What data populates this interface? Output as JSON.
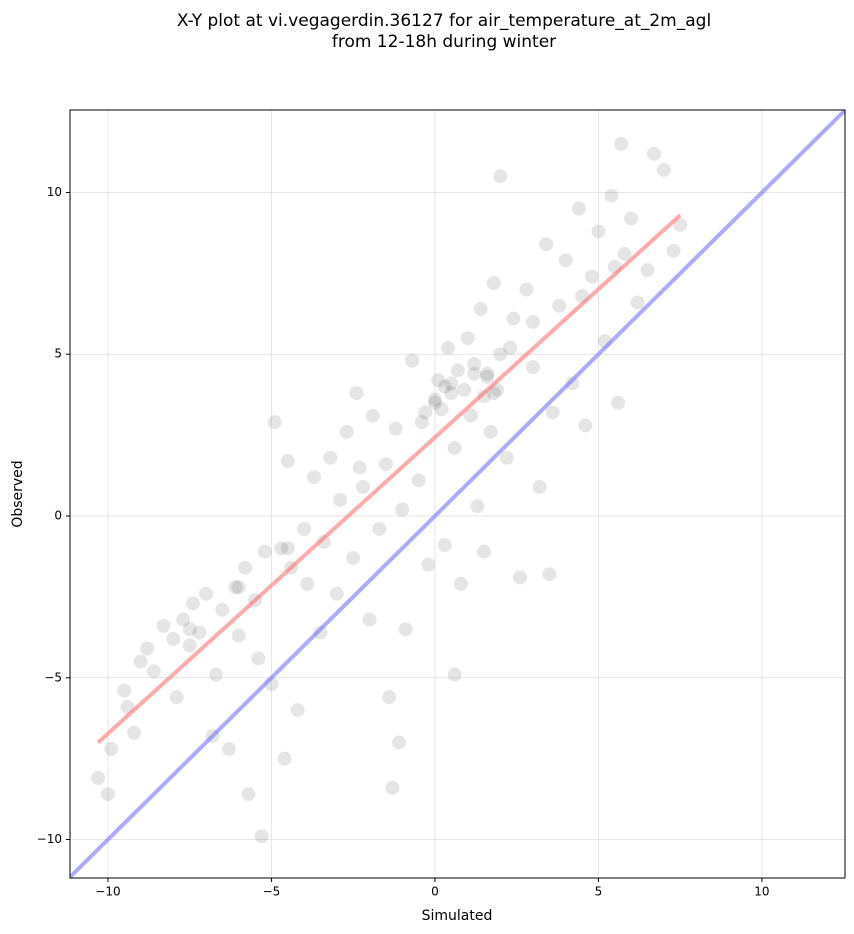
{
  "chart_data": {
    "type": "scatter",
    "title_lines": [
      "X-Y plot at vi.vegagerdin.36127 for air_temperature_at_2m_agl",
      "from 12-18h during winter"
    ],
    "xlabel": "Simulated",
    "ylabel": "Observed",
    "xlim": [
      -11.16,
      12.54
    ],
    "ylim": [
      -11.19,
      12.55
    ],
    "xticks": [
      {
        "value": -10,
        "label": "−10"
      },
      {
        "value": -5,
        "label": "−5"
      },
      0,
      5,
      10
    ],
    "yticks": [
      {
        "value": -10,
        "label": "−10"
      },
      {
        "value": -5,
        "label": "−5"
      },
      0,
      5,
      10
    ],
    "grid": true,
    "color": "#000000",
    "x": [
      -10.3,
      -10,
      -9.9,
      -9.5,
      -9.4,
      -9.2,
      -9,
      -8.8,
      -8.6,
      -8.3,
      -8,
      -7.9,
      -7.7,
      -7.5,
      -7.4,
      -7.2,
      -7,
      -6.8,
      -6.7,
      -6.5,
      -6.3,
      -6.1,
      -6,
      -5.8,
      -5.7,
      -5.5,
      -5.4,
      -5.3,
      -5.2,
      -5,
      -4.9,
      -4.7,
      -4.6,
      -4.5,
      -4.4,
      -4.2,
      -4,
      -3.9,
      -3.7,
      -3.5,
      -3.4,
      -3.2,
      -3,
      -2.9,
      -2.7,
      -2.5,
      -2.4,
      -2.2,
      -2,
      -1.9,
      -1.7,
      -1.5,
      -1.4,
      -1.2,
      -1,
      -0.9,
      -0.7,
      -0.5,
      -0.4,
      -0.2,
      0,
      0.1,
      0.2,
      0.3,
      0.4,
      0.5,
      0.6,
      0.7,
      0.8,
      0.9,
      1,
      1.1,
      1.2,
      1.3,
      1.4,
      1.5,
      1.6,
      1.7,
      1.8,
      1.9,
      2,
      2.2,
      2.4,
      2.6,
      2.8,
      3,
      3.2,
      3.4,
      3.6,
      3.8,
      4,
      4.2,
      4.4,
      4.6,
      4.8,
      5,
      5.2,
      5.4,
      5.6,
      5.8,
      6,
      6.2,
      6.5,
      7,
      7.3,
      7.5,
      2,
      1.5,
      3.5,
      -1.1,
      -1.3,
      0.6,
      6.7,
      5.7,
      0,
      0.3,
      1.6,
      1.8,
      0.5,
      1.2,
      -0.3,
      2.3,
      -2.3,
      -4.5,
      -6,
      -7.5,
      4.5,
      5.5,
      3
    ],
    "values": [
      -8.1,
      -8.6,
      -7.2,
      -5.4,
      -5.9,
      -6.7,
      -4.5,
      -4.1,
      -4.8,
      -3.4,
      -3.8,
      -5.6,
      -3.2,
      -4.0,
      -2.7,
      -3.6,
      -2.4,
      -6.8,
      -4.9,
      -2.9,
      -7.2,
      -2.2,
      -3.7,
      -1.6,
      -8.6,
      -2.6,
      -4.4,
      -9.9,
      -1.1,
      -5.2,
      2.9,
      -1.0,
      -7.5,
      1.7,
      -1.6,
      -6.0,
      -0.4,
      -2.1,
      1.2,
      -3.6,
      -0.8,
      1.8,
      -2.4,
      0.5,
      2.6,
      -1.3,
      3.8,
      0.9,
      -3.2,
      3.1,
      -0.4,
      1.6,
      -5.6,
      2.7,
      0.2,
      -3.5,
      4.8,
      1.1,
      2.9,
      -1.5,
      3.6,
      4.2,
      3.3,
      -0.9,
      5.2,
      3.8,
      2.1,
      4.5,
      -2.1,
      3.9,
      5.5,
      3.1,
      4.4,
      0.3,
      6.4,
      3.7,
      4.3,
      2.6,
      7.2,
      3.9,
      5.0,
      1.8,
      6.1,
      -1.9,
      7.0,
      4.6,
      0.9,
      8.4,
      3.2,
      6.5,
      7.9,
      4.1,
      9.5,
      2.8,
      7.4,
      8.8,
      5.4,
      9.9,
      3.5,
      8.1,
      9.2,
      6.6,
      7.6,
      10.7,
      8.2,
      9.0,
      10.5,
      -1.1,
      -1.8,
      -7.0,
      -8.4,
      -4.9,
      11.2,
      11.5,
      3.5,
      4.0,
      4.4,
      3.8,
      4.1,
      4.7,
      3.2,
      5.2,
      1.5,
      -1.0,
      -2.2,
      -3.5,
      6.8,
      7.7,
      6
    ],
    "lines": [
      {
        "color": "#6666ff",
        "x": [
          -11.16,
          12.54
        ],
        "values": [
          -11.16,
          12.54
        ]
      },
      {
        "color": "#ff6666",
        "x": [
          -10.3,
          7.5
        ],
        "values": [
          -7.0,
          9.3
        ]
      }
    ]
  }
}
